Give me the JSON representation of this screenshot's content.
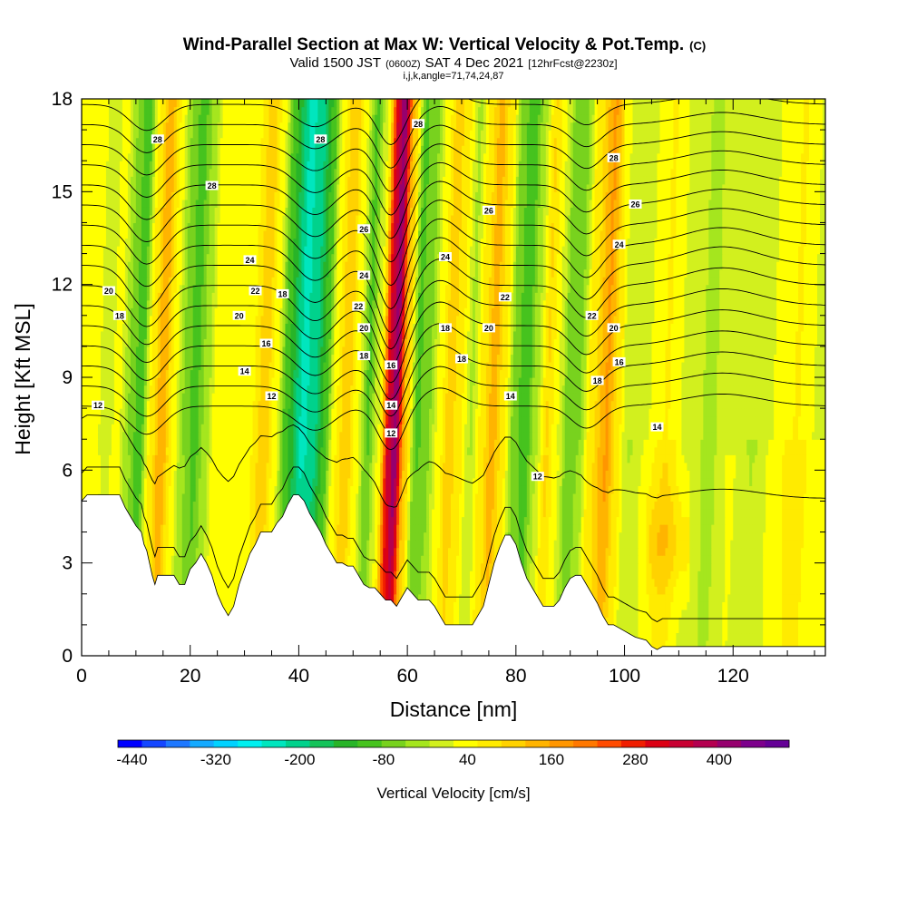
{
  "chart_data": {
    "type": "heatmap",
    "title": "Wind-Parallel Section at Max W: Vertical Velocity & Pot.Temp.",
    "title_suffix": "(C)",
    "subtitle": {
      "a": "Valid 1500 JST",
      "b": "(0600Z)",
      "c": "SAT 4 Dec 2021",
      "d": "[12hrFcst@2230z]"
    },
    "subtitle2": "i,j,k,angle=71,74,24,87",
    "xlabel": "Distance [nm]",
    "ylabel": "Height [Kft MSL]",
    "xlim": [
      0,
      137
    ],
    "ylim": [
      0,
      18
    ],
    "xticks": [
      "0",
      "20",
      "40",
      "60",
      "80",
      "100",
      "120"
    ],
    "yticks": [
      "0",
      "3",
      "6",
      "9",
      "12",
      "15",
      "18"
    ],
    "colorbar": {
      "label": "Vertical Velocity [cm/s]",
      "range": [
        -460,
        500
      ],
      "tick_labels": [
        "-440",
        "-320",
        "-200",
        "-80",
        "40",
        "160",
        "280",
        "400"
      ],
      "colors": [
        "#0000ff",
        "#1446ff",
        "#1e78ff",
        "#14aaff",
        "#00d2ff",
        "#00f0f0",
        "#00e6be",
        "#00d28c",
        "#14c35a",
        "#28b428",
        "#46c31e",
        "#78d21e",
        "#a5e61e",
        "#d2f01e",
        "#ffff00",
        "#ffeb00",
        "#ffd200",
        "#ffb400",
        "#ff9600",
        "#ff7800",
        "#ff4b00",
        "#f01e00",
        "#dc0014",
        "#c80032",
        "#b40050",
        "#96006e",
        "#7d008c",
        "#640096"
      ]
    },
    "w_columns": [
      {
        "x": 2,
        "w": 30
      },
      {
        "x": 5,
        "w": 10
      },
      {
        "x": 7,
        "w": 30
      },
      {
        "x": 9,
        "w": -50
      },
      {
        "x": 11,
        "w": -110
      },
      {
        "x": 13,
        "w": 60
      },
      {
        "x": 15,
        "w": 150
      },
      {
        "x": 17,
        "w": 50
      },
      {
        "x": 19,
        "w": -50
      },
      {
        "x": 21,
        "w": -100
      },
      {
        "x": 23,
        "w": -40
      },
      {
        "x": 25,
        "w": 40
      },
      {
        "x": 28,
        "w": 30
      },
      {
        "x": 31,
        "w": 40
      },
      {
        "x": 34,
        "w": 110
      },
      {
        "x": 36,
        "w": 30
      },
      {
        "x": 38,
        "w": -110
      },
      {
        "x": 41,
        "w": -230
      },
      {
        "x": 43,
        "w": -200
      },
      {
        "x": 45,
        "w": -110
      },
      {
        "x": 47,
        "w": 50
      },
      {
        "x": 49,
        "w": 120
      },
      {
        "x": 51,
        "w": 30
      },
      {
        "x": 53,
        "w": -90
      },
      {
        "x": 55,
        "w": 20
      },
      {
        "x": 57,
        "w": 340
      },
      {
        "x": 58,
        "w": 420
      },
      {
        "x": 60,
        "w": 110
      },
      {
        "x": 62,
        "w": -90
      },
      {
        "x": 64,
        "w": -60
      },
      {
        "x": 66,
        "w": 30
      },
      {
        "x": 68,
        "w": 110
      },
      {
        "x": 70,
        "w": 60
      },
      {
        "x": 72,
        "w": -20
      },
      {
        "x": 74,
        "w": 70
      },
      {
        "x": 76,
        "w": 140
      },
      {
        "x": 78,
        "w": 60
      },
      {
        "x": 80,
        "w": -70
      },
      {
        "x": 82,
        "w": -110
      },
      {
        "x": 84,
        "w": -20
      },
      {
        "x": 86,
        "w": 90
      },
      {
        "x": 88,
        "w": 20
      },
      {
        "x": 90,
        "w": -80
      },
      {
        "x": 92,
        "w": -50
      },
      {
        "x": 94,
        "w": 70
      },
      {
        "x": 97,
        "w": 160
      },
      {
        "x": 99,
        "w": 70
      },
      {
        "x": 101,
        "w": -20
      },
      {
        "x": 104,
        "w": 20
      },
      {
        "x": 108,
        "w": 80
      },
      {
        "x": 112,
        "w": 10
      },
      {
        "x": 116,
        "w": -30
      },
      {
        "x": 120,
        "w": 20
      },
      {
        "x": 124,
        "w": -20
      },
      {
        "x": 128,
        "w": 30
      },
      {
        "x": 132,
        "w": 80
      },
      {
        "x": 136,
        "w": 20
      }
    ],
    "terrain": [
      [
        0,
        5.0
      ],
      [
        1,
        5.2
      ],
      [
        4,
        5.2
      ],
      [
        7,
        5.2
      ],
      [
        8,
        4.8
      ],
      [
        9,
        4.5
      ],
      [
        10,
        4.2
      ],
      [
        11,
        4.0
      ],
      [
        11.5,
        3.6
      ],
      [
        12,
        3.4
      ],
      [
        12.5,
        3.0
      ],
      [
        13,
        2.6
      ],
      [
        13.5,
        2.3
      ],
      [
        14,
        2.6
      ],
      [
        17,
        2.6
      ],
      [
        18,
        2.3
      ],
      [
        19,
        2.3
      ],
      [
        20,
        2.8
      ],
      [
        21,
        3.0
      ],
      [
        22,
        3.3
      ],
      [
        23,
        3.0
      ],
      [
        24,
        2.6
      ],
      [
        25,
        2.0
      ],
      [
        26,
        1.6
      ],
      [
        27,
        1.3
      ],
      [
        28,
        1.6
      ],
      [
        29,
        2.3
      ],
      [
        30,
        2.8
      ],
      [
        31,
        3.3
      ],
      [
        32,
        3.6
      ],
      [
        33,
        4.0
      ],
      [
        34,
        4.0
      ],
      [
        35,
        4.0
      ],
      [
        36,
        4.3
      ],
      [
        37,
        4.5
      ],
      [
        38,
        4.9
      ],
      [
        39,
        5.2
      ],
      [
        40,
        5.2
      ],
      [
        41,
        5.0
      ],
      [
        42,
        4.6
      ],
      [
        43,
        4.3
      ],
      [
        44,
        4.0
      ],
      [
        45,
        3.6
      ],
      [
        46,
        3.3
      ],
      [
        47,
        3.0
      ],
      [
        48,
        3.0
      ],
      [
        49,
        2.9
      ],
      [
        50,
        2.9
      ],
      [
        51,
        2.6
      ],
      [
        52,
        2.3
      ],
      [
        53,
        2.2
      ],
      [
        54,
        2.2
      ],
      [
        55,
        2.0
      ],
      [
        56,
        1.8
      ],
      [
        57,
        1.8
      ],
      [
        58,
        1.6
      ],
      [
        59,
        1.9
      ],
      [
        60,
        2.2
      ],
      [
        61,
        2.0
      ],
      [
        62,
        1.8
      ],
      [
        63,
        1.8
      ],
      [
        64,
        1.8
      ],
      [
        65,
        1.6
      ],
      [
        66,
        1.3
      ],
      [
        67,
        1.0
      ],
      [
        68,
        1.0
      ],
      [
        70,
        1.0
      ],
      [
        72,
        1.0
      ],
      [
        73,
        1.3
      ],
      [
        74,
        1.6
      ],
      [
        75,
        2.3
      ],
      [
        76,
        3.0
      ],
      [
        77,
        3.5
      ],
      [
        78,
        3.9
      ],
      [
        79,
        3.9
      ],
      [
        80,
        3.6
      ],
      [
        81,
        3.0
      ],
      [
        82,
        2.5
      ],
      [
        83,
        2.2
      ],
      [
        84,
        1.9
      ],
      [
        85,
        1.6
      ],
      [
        86,
        1.6
      ],
      [
        87,
        1.6
      ],
      [
        88,
        1.8
      ],
      [
        89,
        2.2
      ],
      [
        90,
        2.5
      ],
      [
        91,
        2.6
      ],
      [
        92,
        2.6
      ],
      [
        93,
        2.3
      ],
      [
        94,
        2.0
      ],
      [
        95,
        1.7
      ],
      [
        96,
        1.3
      ],
      [
        97,
        1.0
      ],
      [
        98,
        1.0
      ],
      [
        99,
        0.9
      ],
      [
        100,
        0.8
      ],
      [
        101,
        0.7
      ],
      [
        102,
        0.6
      ],
      [
        104,
        0.5
      ],
      [
        105,
        0.3
      ],
      [
        106,
        0.2
      ],
      [
        107,
        0.3
      ],
      [
        137,
        0.3
      ]
    ],
    "theta_levels": [
      12,
      13,
      14,
      15,
      16,
      17,
      18,
      19,
      20,
      21,
      22,
      23,
      24,
      25,
      26,
      27,
      28
    ],
    "contour_labels": [
      {
        "x": 14,
        "y": 16.7,
        "text": "28"
      },
      {
        "x": 24,
        "y": 15.2,
        "text": "28"
      },
      {
        "x": 44,
        "y": 16.7,
        "text": "28"
      },
      {
        "x": 62,
        "y": 17.2,
        "text": "28"
      },
      {
        "x": 98,
        "y": 16.1,
        "text": "28"
      },
      {
        "x": 75,
        "y": 14.4,
        "text": "26"
      },
      {
        "x": 102,
        "y": 14.6,
        "text": "26"
      },
      {
        "x": 52,
        "y": 13.8,
        "text": "26"
      },
      {
        "x": 31,
        "y": 12.8,
        "text": "24"
      },
      {
        "x": 52,
        "y": 12.3,
        "text": "24"
      },
      {
        "x": 67,
        "y": 12.9,
        "text": "24"
      },
      {
        "x": 99,
        "y": 13.3,
        "text": "24"
      },
      {
        "x": 5,
        "y": 11.8,
        "text": "20"
      },
      {
        "x": 32,
        "y": 11.8,
        "text": "22"
      },
      {
        "x": 37,
        "y": 11.7,
        "text": "18"
      },
      {
        "x": 51,
        "y": 11.3,
        "text": "22"
      },
      {
        "x": 78,
        "y": 11.6,
        "text": "22"
      },
      {
        "x": 94,
        "y": 11.0,
        "text": "22"
      },
      {
        "x": 7,
        "y": 11.0,
        "text": "18"
      },
      {
        "x": 29,
        "y": 11.0,
        "text": "20"
      },
      {
        "x": 52,
        "y": 10.6,
        "text": "20"
      },
      {
        "x": 67,
        "y": 10.6,
        "text": "18"
      },
      {
        "x": 75,
        "y": 10.6,
        "text": "20"
      },
      {
        "x": 98,
        "y": 10.6,
        "text": "20"
      },
      {
        "x": 34,
        "y": 10.1,
        "text": "16"
      },
      {
        "x": 52,
        "y": 9.7,
        "text": "18"
      },
      {
        "x": 57,
        "y": 9.4,
        "text": "16"
      },
      {
        "x": 70,
        "y": 9.6,
        "text": "18"
      },
      {
        "x": 99,
        "y": 9.5,
        "text": "16"
      },
      {
        "x": 95,
        "y": 8.9,
        "text": "18"
      },
      {
        "x": 30,
        "y": 9.2,
        "text": "14"
      },
      {
        "x": 57,
        "y": 8.1,
        "text": "14"
      },
      {
        "x": 79,
        "y": 8.4,
        "text": "14"
      },
      {
        "x": 35,
        "y": 8.4,
        "text": "12"
      },
      {
        "x": 3,
        "y": 8.1,
        "text": "12"
      },
      {
        "x": 57,
        "y": 7.2,
        "text": "12"
      },
      {
        "x": 84,
        "y": 5.8,
        "text": "12"
      },
      {
        "x": 106,
        "y": 7.4,
        "text": "14"
      }
    ]
  }
}
